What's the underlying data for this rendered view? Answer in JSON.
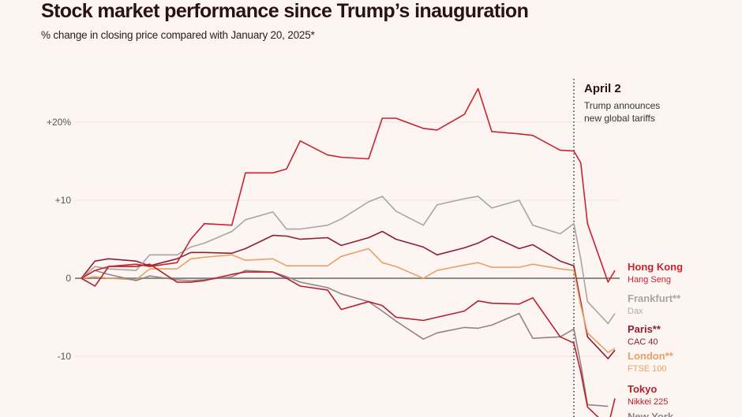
{
  "chart_data": {
    "type": "line",
    "title": "Stock market performance since Trump’s inauguration",
    "subtitle": "% change in closing price compared with January 20, 2025*",
    "xlabel": "",
    "ylabel": "",
    "ylim": [
      -18,
      25
    ],
    "yticks": [
      {
        "value": 20,
        "label": "+20%"
      },
      {
        "value": 10,
        "label": "+10"
      },
      {
        "value": 0,
        "label": "0"
      },
      {
        "value": -10,
        "label": "-10"
      }
    ],
    "grid": true,
    "x": [
      "2025-01-20",
      "2025-01-22",
      "2025-01-24",
      "2025-01-28",
      "2025-01-30",
      "2025-02-03",
      "2025-02-05",
      "2025-02-07",
      "2025-02-11",
      "2025-02-13",
      "2025-02-17",
      "2025-02-19",
      "2025-02-21",
      "2025-02-25",
      "2025-02-27",
      "2025-03-03",
      "2025-03-05",
      "2025-03-07",
      "2025-03-11",
      "2025-03-13",
      "2025-03-17",
      "2025-03-19",
      "2025-03-21",
      "2025-03-25",
      "2025-03-27",
      "2025-03-31",
      "2025-04-02",
      "2025-04-03",
      "2025-04-04",
      "2025-04-07",
      "2025-04-08"
    ],
    "annotation": {
      "date": "2025-04-02",
      "title": "April 2",
      "lines": [
        "Trump announces",
        "new global tariffs"
      ]
    },
    "series": [
      {
        "name": "Hong Kong",
        "index": "Hang Seng",
        "color": "#c8232f",
        "values": [
          0,
          1.0,
          1.5,
          1.8,
          1.5,
          2.0,
          5.0,
          7.0,
          6.8,
          13.5,
          13.5,
          14.0,
          17.6,
          15.8,
          15.5,
          15.3,
          20.5,
          20.5,
          19.2,
          19.0,
          21.0,
          24.3,
          18.8,
          18.5,
          18.3,
          16.4,
          16.3,
          14.8,
          7.0,
          -0.5,
          1.0
        ]
      },
      {
        "name": "Frankfurt**",
        "index": "Dax",
        "color": "#a9a5a5",
        "values": [
          0,
          1.5,
          1.2,
          1.0,
          3.0,
          3.0,
          4.0,
          4.5,
          6.0,
          7.5,
          8.5,
          6.3,
          6.3,
          6.8,
          7.6,
          9.8,
          10.5,
          8.6,
          6.8,
          9.4,
          10.2,
          10.5,
          9.0,
          10.0,
          6.8,
          5.7,
          7.0,
          2.5,
          -3.0,
          -5.8,
          -4.5
        ]
      },
      {
        "name": "Paris**",
        "index": "CAC 40",
        "color": "#8e1f2e",
        "values": [
          0,
          2.2,
          2.5,
          2.2,
          1.6,
          2.5,
          3.3,
          3.3,
          3.2,
          3.8,
          5.5,
          5.4,
          5.0,
          5.2,
          4.2,
          5.2,
          6.0,
          5.0,
          4.0,
          3.0,
          3.9,
          4.5,
          5.4,
          3.8,
          4.3,
          2.2,
          1.6,
          -3.0,
          -7.5,
          -10.3,
          -9.2
        ]
      },
      {
        "name": "London**",
        "index": "FTSE 100",
        "color": "#e8a165",
        "values": [
          0,
          0.2,
          0,
          -0.2,
          1.2,
          1.2,
          2.5,
          2.7,
          3.0,
          2.3,
          2.5,
          1.6,
          1.6,
          1.6,
          2.8,
          3.8,
          2.0,
          1.5,
          0,
          1.0,
          1.7,
          2.0,
          1.4,
          1.4,
          1.8,
          1.2,
          1.0,
          -3.5,
          -7.0,
          -9.5,
          -9.0
        ]
      },
      {
        "name": "Tokyo",
        "index": "Nikkei 225",
        "color": "#b8202d",
        "values": [
          0,
          -1.0,
          1.5,
          1.5,
          1.8,
          -0.5,
          -0.5,
          -0.3,
          0.5,
          0.8,
          0.8,
          0,
          -1.0,
          -1.5,
          -4.0,
          -3.0,
          -3.5,
          -5.0,
          -5.4,
          -5.0,
          -4.2,
          -2.9,
          -3.2,
          -3.3,
          -2.5,
          -7.5,
          -8.3,
          -12.0,
          -16.5,
          -19.0,
          -15.4
        ]
      },
      {
        "name": "New York",
        "index": "",
        "color": "#8f8585",
        "values": [
          0,
          1.0,
          0.5,
          -0.3,
          0.3,
          -0.2,
          -0.3,
          -0.2,
          0.2,
          1.0,
          0.8,
          0.2,
          -0.5,
          -1.2,
          -2.0,
          -3.0,
          -4.2,
          -5.5,
          -7.8,
          -7.0,
          -6.3,
          -6.4,
          -6.0,
          -4.5,
          -7.7,
          -7.5,
          -6.5,
          -11.0,
          -16.2,
          -16.4,
          null
        ]
      }
    ]
  }
}
